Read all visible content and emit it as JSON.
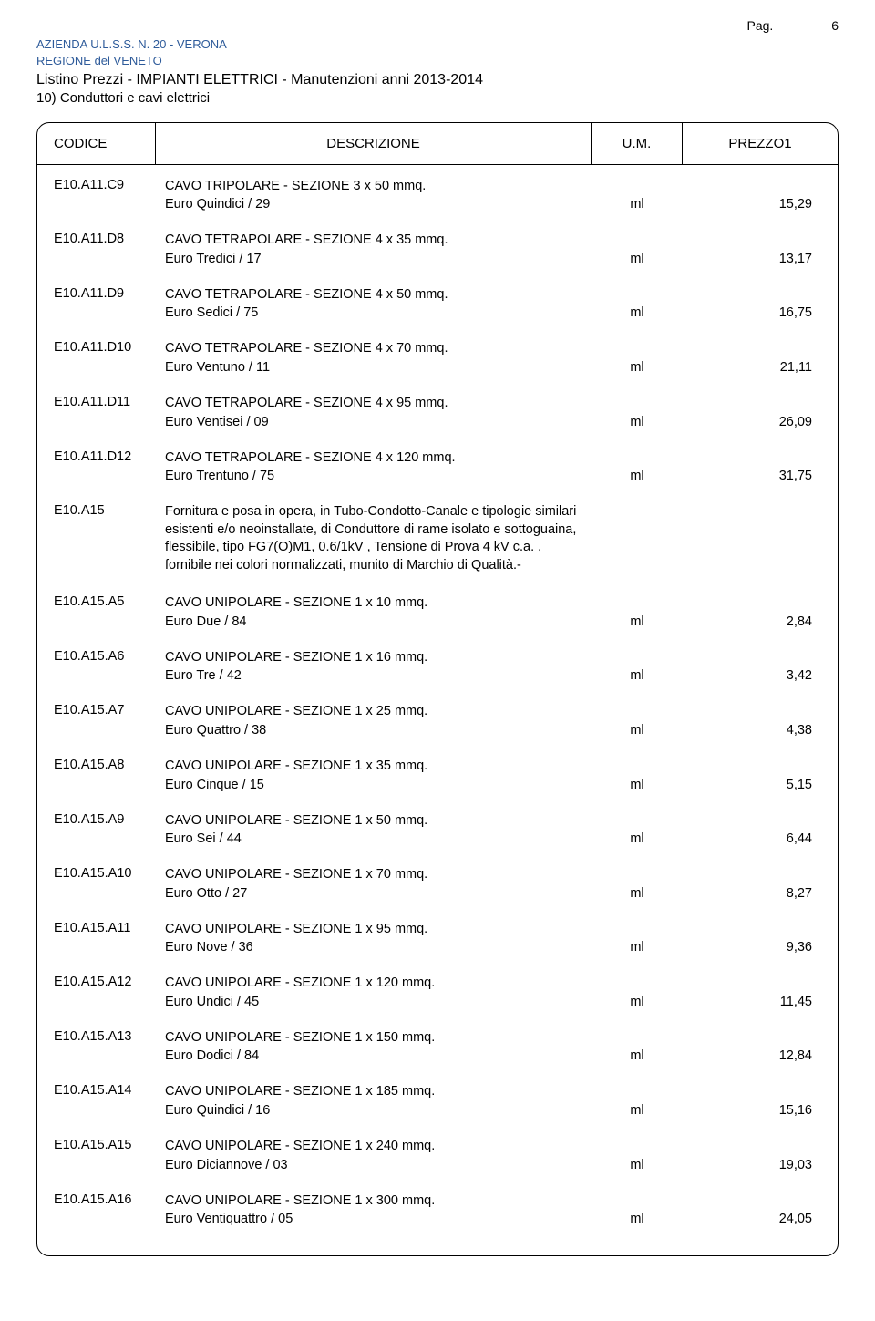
{
  "page_label": "Pag.",
  "page_number": "6",
  "header": {
    "org1": "AZIENDA  U.L.S.S. N. 20 - VERONA",
    "org2": "REGIONE del VENETO",
    "title": "Listino Prezzi - IMPIANTI ELETTRICI - Manutenzioni anni 2013-2014",
    "subtitle": "10) Conduttori e cavi elettrici"
  },
  "columns": {
    "code": "CODICE",
    "desc": "DESCRIZIONE",
    "um": "U.M.",
    "price": "PREZZO1"
  },
  "entries": [
    {
      "code": "E10.A11.C9",
      "desc": "CAVO TRIPOLARE - SEZIONE 3 x  50 mmq.",
      "euro": "Euro Quindici / 29",
      "um": "ml",
      "price": "15,29"
    },
    {
      "code": "E10.A11.D8",
      "desc": "CAVO TETRAPOLARE - SEZIONE 4 x  35 mmq.",
      "euro": "Euro Tredici / 17",
      "um": "ml",
      "price": "13,17"
    },
    {
      "code": "E10.A11.D9",
      "desc": "CAVO TETRAPOLARE - SEZIONE 4 x  50 mmq.",
      "euro": "Euro Sedici / 75",
      "um": "ml",
      "price": "16,75"
    },
    {
      "code": "E10.A11.D10",
      "desc": "CAVO TETRAPOLARE - SEZIONE 4 x  70 mmq.",
      "euro": "Euro Ventuno / 11",
      "um": "ml",
      "price": "21,11"
    },
    {
      "code": "E10.A11.D11",
      "desc": "CAVO TETRAPOLARE - SEZIONE 4 x  95 mmq.",
      "euro": "Euro Ventisei / 09",
      "um": "ml",
      "price": "26,09"
    },
    {
      "code": "E10.A11.D12",
      "desc": "CAVO TETRAPOLARE - SEZIONE 4 x 120 mmq.",
      "euro": "Euro Trentuno / 75",
      "um": "ml",
      "price": "31,75"
    },
    {
      "code": "E10.A15",
      "desc": "Fornitura e posa in opera, in Tubo-Condotto-Canale e tipologie similari esistenti e/o neoinstallate, di Conduttore di rame isolato e sottoguaina, flessibile, tipo FG7(O)M1, 0.6/1kV , Tensione di Prova 4 kV c.a. , fornibile nei colori normalizzati, munito di Marchio di Qualità.-",
      "euro": "",
      "um": "",
      "price": ""
    },
    {
      "code": "E10.A15.A5",
      "desc": "CAVO UNIPOLARE - SEZIONE 1 x  10 mmq.",
      "euro": "Euro Due / 84",
      "um": "ml",
      "price": "2,84"
    },
    {
      "code": "E10.A15.A6",
      "desc": "CAVO UNIPOLARE - SEZIONE 1 x  16 mmq.",
      "euro": "Euro Tre / 42",
      "um": "ml",
      "price": "3,42"
    },
    {
      "code": "E10.A15.A7",
      "desc": "CAVO UNIPOLARE - SEZIONE 1 x  25 mmq.",
      "euro": "Euro Quattro / 38",
      "um": "ml",
      "price": "4,38"
    },
    {
      "code": "E10.A15.A8",
      "desc": "CAVO UNIPOLARE - SEZIONE 1 x  35 mmq.",
      "euro": "Euro Cinque / 15",
      "um": "ml",
      "price": "5,15"
    },
    {
      "code": "E10.A15.A9",
      "desc": "CAVO UNIPOLARE - SEZIONE 1 x  50 mmq.",
      "euro": "Euro Sei / 44",
      "um": "ml",
      "price": "6,44"
    },
    {
      "code": "E10.A15.A10",
      "desc": "CAVO UNIPOLARE - SEZIONE 1 x  70 mmq.",
      "euro": "Euro Otto / 27",
      "um": "ml",
      "price": "8,27"
    },
    {
      "code": "E10.A15.A11",
      "desc": "CAVO UNIPOLARE - SEZIONE 1 x  95 mmq.",
      "euro": "Euro Nove / 36",
      "um": "ml",
      "price": "9,36"
    },
    {
      "code": "E10.A15.A12",
      "desc": "CAVO UNIPOLARE - SEZIONE 1 x 120 mmq.",
      "euro": "Euro Undici / 45",
      "um": "ml",
      "price": "11,45"
    },
    {
      "code": "E10.A15.A13",
      "desc": "CAVO UNIPOLARE - SEZIONE 1 x 150 mmq.",
      "euro": "Euro Dodici / 84",
      "um": "ml",
      "price": "12,84"
    },
    {
      "code": "E10.A15.A14",
      "desc": "CAVO UNIPOLARE - SEZIONE 1 x 185 mmq.",
      "euro": "Euro Quindici / 16",
      "um": "ml",
      "price": "15,16"
    },
    {
      "code": "E10.A15.A15",
      "desc": "CAVO UNIPOLARE - SEZIONE 1 x 240 mmq.",
      "euro": "Euro Diciannove / 03",
      "um": "ml",
      "price": "19,03"
    },
    {
      "code": "E10.A15.A16",
      "desc": "CAVO UNIPOLARE - SEZIONE 1 x 300 mmq.",
      "euro": "Euro Ventiquattro / 05",
      "um": "ml",
      "price": "24,05"
    }
  ],
  "colors": {
    "header_blue": "#2e5b9a",
    "border": "#000000",
    "text": "#000000",
    "bg": "#ffffff"
  },
  "typography": {
    "body_font": "Arial",
    "body_size_pt": 11,
    "title_size_pt": 12
  }
}
